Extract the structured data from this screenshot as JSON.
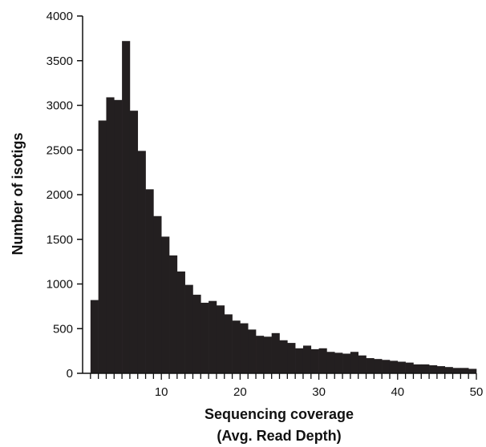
{
  "chart_data": {
    "type": "bar",
    "xlabel_line1": "Sequencing coverage",
    "xlabel_line2": "(Avg. Read Depth)",
    "ylabel": "Number of isotigs",
    "xlim": [
      0,
      50
    ],
    "ylim": [
      0,
      4000
    ],
    "x_ticks": [
      10,
      20,
      30,
      40,
      50
    ],
    "y_ticks": [
      0,
      500,
      1000,
      1500,
      2000,
      2500,
      3000,
      3500,
      4000
    ],
    "bar_color": "#231f20",
    "x": [
      1.5,
      2.5,
      3.5,
      4.5,
      5.5,
      6.5,
      7.5,
      8.5,
      9.5,
      10.5,
      11.5,
      12.5,
      13.5,
      14.5,
      15.5,
      16.5,
      17.5,
      18.5,
      19.5,
      20.5,
      21.5,
      22.5,
      23.5,
      24.5,
      25.5,
      26.5,
      27.5,
      28.5,
      29.5,
      30.5,
      31.5,
      32.5,
      33.5,
      34.5,
      35.5,
      36.5,
      37.5,
      38.5,
      39.5,
      40.5,
      41.5,
      42.5,
      43.5,
      44.5,
      45.5,
      46.5,
      47.5,
      48.5,
      49.5
    ],
    "values": [
      820,
      2830,
      3090,
      3060,
      3720,
      2940,
      2490,
      2060,
      1760,
      1530,
      1320,
      1140,
      990,
      880,
      790,
      810,
      760,
      660,
      590,
      560,
      490,
      420,
      410,
      450,
      370,
      340,
      280,
      310,
      270,
      280,
      240,
      230,
      220,
      240,
      200,
      170,
      160,
      150,
      140,
      130,
      120,
      100,
      100,
      90,
      80,
      70,
      60,
      60,
      50
    ],
    "grid": false,
    "legend": "none"
  }
}
